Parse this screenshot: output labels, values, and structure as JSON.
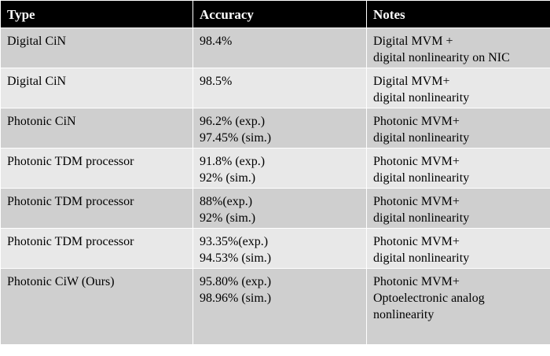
{
  "table": {
    "headers": [
      "Type",
      "Accuracy",
      "Notes"
    ],
    "rows": [
      {
        "type": "Digital CiN",
        "accuracy": [
          "98.4%"
        ],
        "notes": [
          "Digital MVM +",
          "digital nonlinearity on NIC"
        ]
      },
      {
        "type": "Digital CiN",
        "accuracy": [
          "98.5%"
        ],
        "notes": [
          "Digital MVM+",
          "digital nonlinearity"
        ]
      },
      {
        "type": "Photonic CiN",
        "accuracy": [
          "96.2% (exp.)",
          "97.45% (sim.)"
        ],
        "notes": [
          "Photonic MVM+",
          "digital nonlinearity"
        ]
      },
      {
        "type": "Photonic TDM processor",
        "accuracy": [
          "91.8% (exp.)",
          "92% (sim.)"
        ],
        "notes": [
          "Photonic MVM+",
          "digital nonlinearity"
        ]
      },
      {
        "type": "Photonic TDM processor",
        "accuracy": [
          "88%(exp.)",
          "92% (sim.)"
        ],
        "notes": [
          "Photonic MVM+",
          "digital nonlinearity"
        ]
      },
      {
        "type": "Photonic TDM processor",
        "accuracy": [
          "93.35%(exp.)",
          "94.53% (sim.)"
        ],
        "notes": [
          "Photonic MVM+",
          "digital nonlinearity"
        ]
      },
      {
        "type": "Photonic CiW (Ours)",
        "accuracy": [
          "95.80% (exp.)",
          "98.96% (sim.)"
        ],
        "notes": [
          "Photonic MVM+",
          "Optoelectronic analog",
          "nonlinearity"
        ]
      }
    ]
  },
  "colors": {
    "header_bg": "#000000",
    "header_text": "#ffffff",
    "row_dark": "#cfcfcf",
    "row_light": "#e8e8e8",
    "border": "#ffffff"
  }
}
